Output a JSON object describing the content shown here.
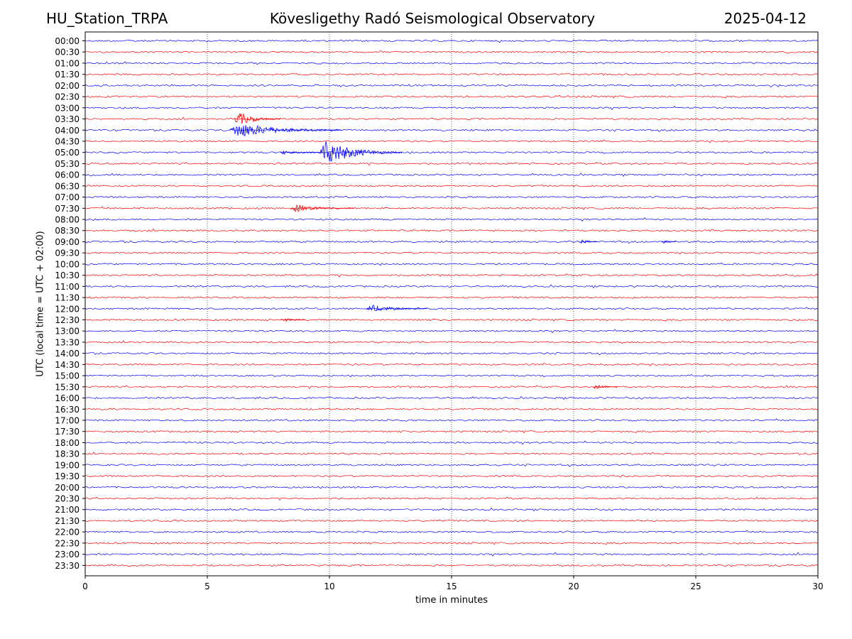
{
  "header": {
    "station": "HU_Station_TRPA",
    "observatory": "Kövesligethy Radó Seismological Observatory",
    "date": "2025-04-12"
  },
  "chart_data": {
    "type": "line",
    "title": "Kövesligethy Radó Seismological Observatory",
    "xlabel": "time in minutes",
    "ylabel": "UTC (local time = UTC + 02:00)",
    "xlim": [
      0,
      30
    ],
    "x_ticks": [
      0,
      5,
      10,
      15,
      20,
      25,
      30
    ],
    "grid": "vertical dotted at x ticks",
    "colors": {
      "even_rows": "#0000ff",
      "odd_rows": "#ff0000",
      "grid": "#000000"
    },
    "rows": [
      "00:00",
      "00:30",
      "01:00",
      "01:30",
      "02:00",
      "02:30",
      "03:00",
      "03:30",
      "04:00",
      "04:30",
      "05:00",
      "05:30",
      "06:00",
      "06:30",
      "07:00",
      "07:30",
      "08:00",
      "08:30",
      "09:00",
      "09:30",
      "10:00",
      "10:30",
      "11:00",
      "11:30",
      "12:00",
      "12:30",
      "13:00",
      "13:30",
      "14:00",
      "14:30",
      "15:00",
      "15:30",
      "16:00",
      "16:30",
      "17:00",
      "17:30",
      "18:00",
      "18:30",
      "19:00",
      "19:30",
      "20:00",
      "20:30",
      "21:00",
      "21:30",
      "22:00",
      "22:30",
      "23:00",
      "23:30"
    ],
    "events": [
      {
        "row": "03:30",
        "start_min": 6.1,
        "end_min": 8.0,
        "peak_amplitude": 0.9
      },
      {
        "row": "04:00",
        "start_min": 5.9,
        "end_min": 10.5,
        "peak_amplitude": 1.0
      },
      {
        "row": "05:00",
        "start_min": 9.6,
        "end_min": 13.0,
        "peak_amplitude": 1.6
      },
      {
        "row": "05:00",
        "start_min": 8.0,
        "end_min": 9.6,
        "peak_amplitude": 0.3
      },
      {
        "row": "07:30",
        "start_min": 8.4,
        "end_min": 11.0,
        "peak_amplitude": 0.5
      },
      {
        "row": "09:00",
        "start_min": 20.2,
        "end_min": 21.0,
        "peak_amplitude": 0.3
      },
      {
        "row": "09:00",
        "start_min": 23.6,
        "end_min": 24.2,
        "peak_amplitude": 0.25
      },
      {
        "row": "12:00",
        "start_min": 11.5,
        "end_min": 14.0,
        "peak_amplitude": 0.5
      },
      {
        "row": "12:30",
        "start_min": 8.0,
        "end_min": 9.0,
        "peak_amplitude": 0.3
      },
      {
        "row": "15:30",
        "start_min": 20.8,
        "end_min": 21.8,
        "peak_amplitude": 0.3
      }
    ]
  }
}
